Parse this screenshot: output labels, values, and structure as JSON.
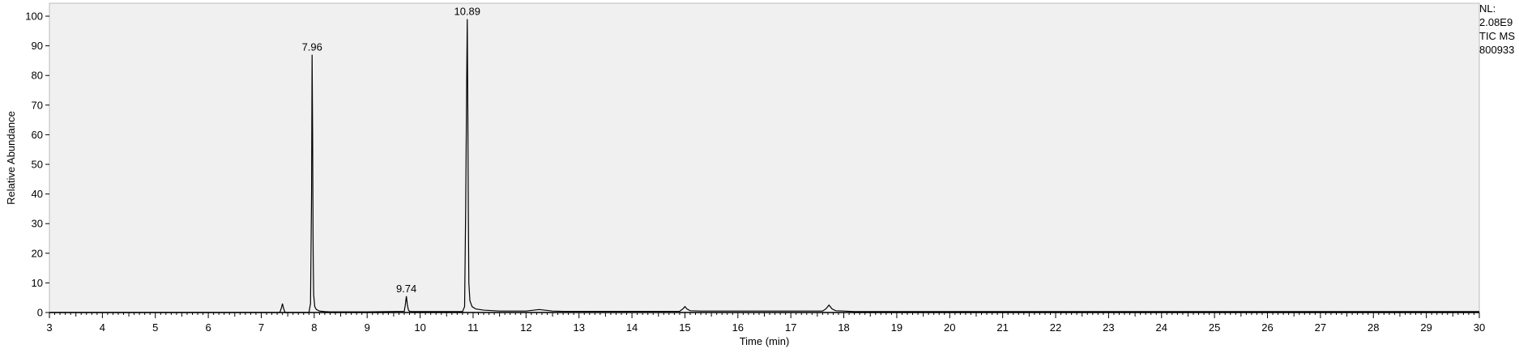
{
  "chart_data": {
    "type": "line",
    "title": "",
    "xlabel": "Time (min)",
    "ylabel": "Relative Abundance",
    "xlim": [
      3,
      30
    ],
    "ylim": [
      0,
      100
    ],
    "x_ticks": [
      3,
      4,
      5,
      6,
      7,
      8,
      9,
      10,
      11,
      12,
      13,
      14,
      15,
      16,
      17,
      18,
      19,
      20,
      21,
      22,
      23,
      24,
      25,
      26,
      27,
      28,
      29,
      30
    ],
    "y_ticks": [
      0,
      10,
      20,
      30,
      40,
      50,
      60,
      70,
      80,
      90,
      100
    ],
    "grid": false,
    "series": [
      {
        "x": [
          3.0,
          7.35,
          7.38,
          7.4,
          7.42,
          7.45,
          7.9,
          7.93,
          7.95,
          7.96,
          7.97,
          7.98,
          7.99,
          8.01,
          8.04,
          8.1,
          8.2,
          8.3,
          9.0,
          9.7,
          9.72,
          9.74,
          9.76,
          9.78,
          9.8,
          9.85,
          10.8,
          10.84,
          10.86,
          10.88,
          10.89,
          10.9,
          10.91,
          10.92,
          10.94,
          10.98,
          11.05,
          11.2,
          11.5,
          12.0,
          12.15,
          12.25,
          12.35,
          12.5,
          12.7,
          14.9,
          14.96,
          15.0,
          15.04,
          15.1,
          15.3,
          17.6,
          17.66,
          17.72,
          17.78,
          17.85,
          18.0,
          18.2,
          30.0
        ],
        "y": [
          0,
          0,
          1.5,
          3,
          1.5,
          0,
          0,
          3,
          40,
          87,
          60,
          20,
          6,
          2,
          1,
          0.5,
          0.3,
          0.2,
          0.2,
          0.4,
          2.5,
          5.5,
          2.5,
          0.8,
          0.4,
          0.3,
          0.3,
          2,
          35,
          80,
          99,
          70,
          35,
          10,
          4,
          2,
          1.2,
          0.8,
          0.5,
          0.5,
          0.8,
          1,
          0.8,
          0.5,
          0.4,
          0.4,
          1.2,
          2,
          1.2,
          0.6,
          0.5,
          0.5,
          1.2,
          2.5,
          1.2,
          0.6,
          0.5,
          0.3,
          0.3
        ]
      }
    ],
    "peak_labels": [
      {
        "x": 7.96,
        "y": 87,
        "text": "7.96"
      },
      {
        "x": 9.74,
        "y": 5.5,
        "text": "9.74"
      },
      {
        "x": 10.89,
        "y": 99,
        "text": "10.89"
      }
    ]
  },
  "info_box": {
    "line1": "NL:",
    "line2": "2.08E9",
    "line3": "TIC  MS",
    "line4": "800933"
  },
  "colors": {
    "plot_background": "#f0f0f0",
    "trace": "#000000",
    "axis": "#000000"
  }
}
